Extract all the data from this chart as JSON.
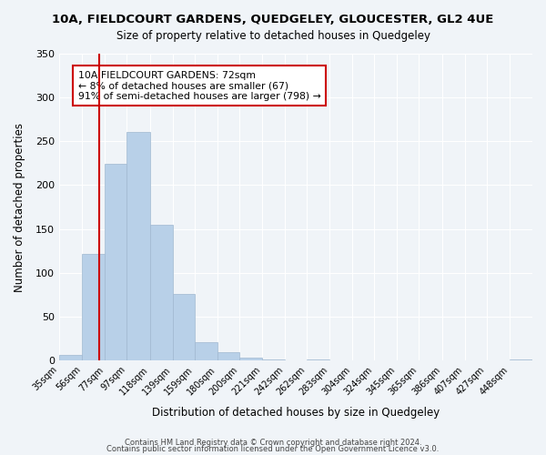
{
  "title_line1": "10A, FIELDCOURT GARDENS, QUEDGELEY, GLOUCESTER, GL2 4UE",
  "title_line2": "Size of property relative to detached houses in Quedgeley",
  "xlabel": "Distribution of detached houses by size in Quedgeley",
  "ylabel": "Number of detached properties",
  "bin_labels": [
    "35sqm",
    "56sqm",
    "77sqm",
    "97sqm",
    "118sqm",
    "139sqm",
    "159sqm",
    "180sqm",
    "200sqm",
    "221sqm",
    "242sqm",
    "262sqm",
    "283sqm",
    "304sqm",
    "324sqm",
    "345sqm",
    "365sqm",
    "386sqm",
    "407sqm",
    "427sqm",
    "448sqm"
  ],
  "bar_values": [
    6,
    122,
    224,
    261,
    155,
    76,
    21,
    9,
    3,
    1,
    0,
    1,
    0,
    0,
    0,
    0,
    0,
    0,
    0,
    0,
    1
  ],
  "bar_color": "#b8d0e8",
  "bar_edge_color": "#a0b8d0",
  "vline_x": 72,
  "vline_color": "#cc0000",
  "ylim": [
    0,
    350
  ],
  "yticks": [
    0,
    50,
    100,
    150,
    200,
    250,
    300,
    350
  ],
  "annotation_title": "10A FIELDCOURT GARDENS: 72sqm",
  "annotation_line1": "← 8% of detached houses are smaller (67)",
  "annotation_line2": "91% of semi-detached houses are larger (798) →",
  "annotation_box_color": "#ffffff",
  "annotation_box_edge": "#cc0000",
  "footer_line1": "Contains HM Land Registry data © Crown copyright and database right 2024.",
  "footer_line2": "Contains public sector information licensed under the Open Government Licence v3.0.",
  "bin_edges": [
    35,
    56,
    77,
    97,
    118,
    139,
    159,
    180,
    200,
    221,
    242,
    262,
    283,
    304,
    324,
    345,
    365,
    386,
    407,
    427,
    448,
    469
  ],
  "background_color": "#f0f4f8"
}
